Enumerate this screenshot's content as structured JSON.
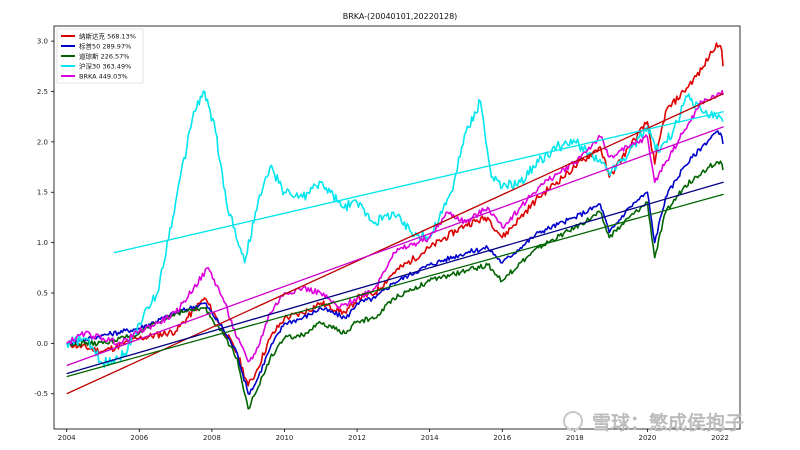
{
  "chart_data": {
    "type": "line",
    "title": "BRKA-(20040101,20220128)",
    "xlabel": "",
    "ylabel": "",
    "xlim": [
      2003.65,
      2022.55
    ],
    "ylim": [
      -0.85,
      3.15
    ],
    "x_ticks": [
      "2004",
      "2006",
      "2008",
      "2010",
      "2012",
      "2014",
      "2016",
      "2018",
      "2020",
      "2022"
    ],
    "y_ticks": [
      "-0.5",
      "0.0",
      "0.5",
      "1.0",
      "1.5",
      "2.0",
      "2.5",
      "3.0"
    ],
    "grid": false,
    "legend_position": "top-left",
    "series": [
      {
        "name": "纳斯达克 568.13%",
        "color": "#dd0000",
        "x": [
          2004,
          2005,
          2006,
          2007,
          2007.8,
          2008.3,
          2008.7,
          2009.0,
          2009.2,
          2009.6,
          2010,
          2010.5,
          2011,
          2011.7,
          2012,
          2012.5,
          2013,
          2014,
          2015,
          2015.6,
          2016,
          2016.5,
          2017,
          2018,
          2018.7,
          2018.95,
          2019.5,
          2020.0,
          2020.2,
          2020.5,
          2021,
          2021.5,
          2021.9,
          2022.05,
          2022.08
        ],
        "y": [
          0.0,
          -0.08,
          0.05,
          0.12,
          0.45,
          0.15,
          -0.1,
          -0.42,
          -0.3,
          0.05,
          0.25,
          0.3,
          0.4,
          0.3,
          0.45,
          0.5,
          0.7,
          0.95,
          1.18,
          1.25,
          1.05,
          1.25,
          1.45,
          1.75,
          1.95,
          1.65,
          1.95,
          2.2,
          1.78,
          2.3,
          2.5,
          2.72,
          2.98,
          2.9,
          2.75
        ]
      },
      {
        "name": "标普50 289.97%",
        "color": "#0000cc",
        "x": [
          2004,
          2005,
          2006,
          2007,
          2007.8,
          2008.3,
          2008.7,
          2009.0,
          2009.2,
          2009.6,
          2010,
          2010.5,
          2011,
          2011.7,
          2012,
          2012.5,
          2013,
          2014,
          2015,
          2015.6,
          2016,
          2016.5,
          2017,
          2018,
          2018.7,
          2018.95,
          2019.5,
          2020.0,
          2020.2,
          2020.5,
          2021,
          2021.5,
          2021.9,
          2022.05,
          2022.08
        ],
        "y": [
          0.0,
          0.08,
          0.15,
          0.3,
          0.4,
          0.15,
          -0.1,
          -0.5,
          -0.4,
          -0.05,
          0.2,
          0.25,
          0.35,
          0.25,
          0.4,
          0.45,
          0.6,
          0.78,
          0.9,
          0.95,
          0.8,
          0.95,
          1.1,
          1.25,
          1.38,
          1.1,
          1.35,
          1.5,
          1.0,
          1.45,
          1.75,
          1.95,
          2.1,
          2.05,
          1.98
        ]
      },
      {
        "name": "道琼斯   226.57%",
        "color": "#006400",
        "x": [
          2004,
          2005,
          2006,
          2007,
          2007.8,
          2008.3,
          2008.7,
          2009.0,
          2009.2,
          2009.6,
          2010,
          2010.5,
          2011,
          2011.7,
          2012,
          2012.5,
          2013,
          2014,
          2015,
          2015.6,
          2016,
          2016.5,
          2017,
          2018,
          2018.7,
          2018.95,
          2019.5,
          2020.0,
          2020.2,
          2020.5,
          2021,
          2021.5,
          2021.9,
          2022.05,
          2022.08
        ],
        "y": [
          0.0,
          0.0,
          0.1,
          0.3,
          0.35,
          0.1,
          -0.15,
          -0.65,
          -0.5,
          -0.15,
          0.05,
          0.08,
          0.2,
          0.1,
          0.22,
          0.25,
          0.45,
          0.62,
          0.72,
          0.78,
          0.62,
          0.8,
          0.95,
          1.15,
          1.3,
          1.05,
          1.25,
          1.4,
          0.85,
          1.3,
          1.55,
          1.7,
          1.8,
          1.78,
          1.72
        ]
      },
      {
        "name": "沪深30 363.49%",
        "color": "#00e5ee",
        "x": [
          2004,
          2004.5,
          2005,
          2005.6,
          2006,
          2006.5,
          2007,
          2007.5,
          2007.8,
          2008.1,
          2008.4,
          2008.9,
          2009.2,
          2009.6,
          2010,
          2010.5,
          2011,
          2011.6,
          2012,
          2012.5,
          2013,
          2013.5,
          2014,
          2014.6,
          2015.0,
          2015.4,
          2015.7,
          2016.0,
          2016.5,
          2017,
          2017.5,
          2018,
          2018.5,
          2019.0,
          2019.5,
          2020.0,
          2020.3,
          2020.7,
          2021.1,
          2021.5,
          2022.0,
          2022.08
        ],
        "y": [
          0.0,
          0.05,
          -0.2,
          -0.1,
          0.2,
          0.5,
          1.4,
          2.3,
          2.5,
          2.1,
          1.4,
          0.8,
          1.3,
          1.75,
          1.5,
          1.45,
          1.6,
          1.35,
          1.4,
          1.2,
          1.3,
          1.1,
          1.05,
          1.5,
          2.1,
          2.4,
          1.65,
          1.55,
          1.6,
          1.8,
          1.95,
          2.0,
          1.85,
          1.7,
          1.9,
          2.15,
          1.9,
          2.1,
          2.45,
          2.3,
          2.25,
          2.2
        ]
      },
      {
        "name": "BRKA 449.03%",
        "color": "#dd00dd",
        "x": [
          2004,
          2004.5,
          2005,
          2005.5,
          2006,
          2006.5,
          2007,
          2007.5,
          2007.9,
          2008.3,
          2008.7,
          2009.0,
          2009.2,
          2009.6,
          2010,
          2010.5,
          2011,
          2011.5,
          2012,
          2012.5,
          2013,
          2014,
          2014.5,
          2015,
          2015.6,
          2016,
          2016.5,
          2017,
          2018,
          2018.7,
          2018.95,
          2019.5,
          2020.0,
          2020.2,
          2020.5,
          2021,
          2021.5,
          2021.9,
          2022.05,
          2022.08
        ],
        "y": [
          0.0,
          0.1,
          0.05,
          0.0,
          0.12,
          0.2,
          0.3,
          0.55,
          0.75,
          0.45,
          0.05,
          -0.18,
          -0.1,
          0.3,
          0.5,
          0.55,
          0.5,
          0.35,
          0.45,
          0.55,
          0.9,
          1.05,
          1.3,
          1.2,
          1.35,
          1.15,
          1.35,
          1.55,
          1.8,
          2.05,
          1.85,
          1.95,
          2.05,
          1.6,
          1.8,
          2.1,
          2.4,
          2.45,
          2.5,
          2.48
        ]
      }
    ],
    "trend_lines": [
      {
        "color": "#bb0000",
        "x": [
          2004,
          2022.1
        ],
        "y": [
          -0.5,
          2.48
        ]
      },
      {
        "color": "#000080",
        "x": [
          2004,
          2022.1
        ],
        "y": [
          -0.3,
          1.6
        ]
      },
      {
        "color": "#006400",
        "x": [
          2004,
          2022.1
        ],
        "y": [
          -0.33,
          1.48
        ]
      },
      {
        "color": "#00e5ee",
        "x": [
          2005.3,
          2022.1
        ],
        "y": [
          0.9,
          2.3
        ]
      },
      {
        "color": "#cc00cc",
        "x": [
          2004,
          2022.1
        ],
        "y": [
          -0.22,
          2.15
        ]
      }
    ],
    "watermark": "雪球：慜成侯抱子"
  }
}
